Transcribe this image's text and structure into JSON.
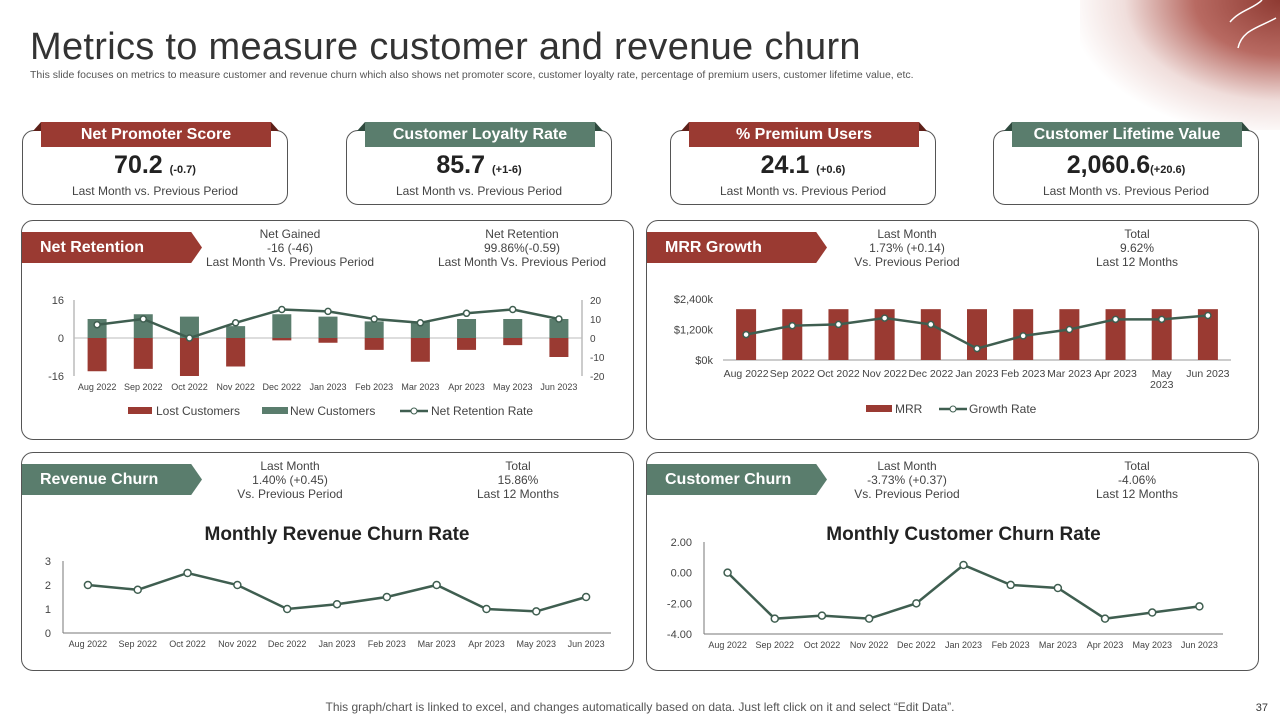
{
  "title": "Metrics to measure customer and revenue churn",
  "subtitle": "This slide focuses on metrics to measure customer and revenue churn which also shows net promoter score, customer loyalty rate, percentage of premium users, customer lifetime value, etc.",
  "kpis": [
    {
      "label": "Net Promoter Score",
      "value": "70.2",
      "change": "(-0.7)",
      "note": "Last Month vs. Previous Period"
    },
    {
      "label": "Customer Loyalty Rate",
      "value": "85.7",
      "change": "(+1-6)",
      "note": "Last Month vs. Previous Period"
    },
    {
      "label": "% Premium Users",
      "value": "24.1",
      "change": "(+0.6)",
      "note": "Last Month vs. Previous Period"
    },
    {
      "label": "Customer Lifetime Value",
      "value": "2,060.6",
      "change": "(+20.6)",
      "note": "Last Month vs. Previous Period"
    }
  ],
  "panels": {
    "net_retention": {
      "title": "Net Retention",
      "stat1": {
        "l1": "Net Gained",
        "l2": "-16 (-46)",
        "l3": "Last Month Vs. Previous Period"
      },
      "stat2": {
        "l1": "Net Retention",
        "l2": "99.86%(-0.59)",
        "l3": "Last Month Vs. Previous Period"
      }
    },
    "mrr_growth": {
      "title": "MRR Growth",
      "stat1": {
        "l1": "Last Month",
        "l2": "1.73% (+0.14)",
        "l3": "Vs. Previous Period"
      },
      "stat2": {
        "l1": "Total",
        "l2": "9.62%",
        "l3": "Last 12 Months"
      }
    },
    "revenue_churn": {
      "title": "Revenue Churn",
      "stat1": {
        "l1": "Last Month",
        "l2": "1.40% (+0.45)",
        "l3": "Vs. Previous Period"
      },
      "stat2": {
        "l1": "Total",
        "l2": "15.86%",
        "l3": "Last 12 Months"
      }
    },
    "customer_churn": {
      "title": "Customer Churn",
      "stat1": {
        "l1": "Last Month",
        "l2": "-3.73% (+0.37)",
        "l3": "Vs. Previous Period"
      },
      "stat2": {
        "l1": "Total",
        "l2": "-4.06%",
        "l3": "Last 12 Months"
      }
    }
  },
  "footer": "This graph/chart is linked to excel, and changes automatically based on data. Just left click on it and select “Edit Data”.",
  "page_number": "37",
  "colors": {
    "red": "#9a3a32",
    "green": "#5a7d6d",
    "line": "#3f5e50"
  },
  "chart_data": [
    {
      "id": "net_retention",
      "type": "bar",
      "categories": [
        "Aug 2022",
        "Sep 2022",
        "Oct 2022",
        "Nov 2022",
        "Dec 2022",
        "Jan 2023",
        "Feb 2023",
        "Mar 2023",
        "Apr 2023",
        "May 2023",
        "Jun 2023"
      ],
      "series": [
        {
          "name": "Lost Customers",
          "axis": "left",
          "values": [
            -14,
            -13,
            -16,
            -12,
            -1,
            -2,
            -5,
            -10,
            -5,
            -3,
            -8
          ]
        },
        {
          "name": "New Customers",
          "axis": "left",
          "values": [
            8,
            10,
            9,
            5,
            10,
            9,
            7,
            7,
            8,
            8,
            8
          ]
        },
        {
          "name": "Net Retention Rate",
          "axis": "right",
          "type": "line",
          "values": [
            7,
            10,
            0,
            8,
            15,
            14,
            10,
            8,
            13,
            15,
            10
          ]
        }
      ],
      "y_left": {
        "ticks": [
          "16",
          "0",
          "-16"
        ],
        "min": -16,
        "max": 16
      },
      "y_right": {
        "ticks": [
          "20",
          "10",
          "0",
          "-10",
          "-20"
        ],
        "min": -20,
        "max": 20
      },
      "legend": [
        "Lost Customers",
        "New Customers",
        "Net Retention Rate"
      ]
    },
    {
      "id": "mrr_growth",
      "type": "bar",
      "categories": [
        "Aug 2022",
        "Sep 2022",
        "Oct 2022",
        "Nov 2022",
        "Dec 2022",
        "Jan 2023",
        "Feb 2023",
        "Mar 2023",
        "Apr 2023",
        "May 2023",
        "Jun 2023"
      ],
      "category_lines": [
        [
          "Aug 2022"
        ],
        [
          "Sep 2022"
        ],
        [
          "Oct 2022"
        ],
        [
          "Nov 2022"
        ],
        [
          "Dec 2022"
        ],
        [
          "Jan 2023"
        ],
        [
          "Feb 2023"
        ],
        [
          "Mar 2023"
        ],
        [
          "Apr 2023"
        ],
        [
          "May",
          "2023"
        ],
        [
          "Jun 2023"
        ]
      ],
      "series": [
        {
          "name": "MRR",
          "values": [
            2000,
            2000,
            2000,
            2000,
            2000,
            2000,
            2000,
            2000,
            2000,
            2000,
            2000
          ]
        },
        {
          "name": "Growth Rate",
          "type": "line",
          "values": [
            1000,
            1350,
            1400,
            1650,
            1400,
            450,
            950,
            1200,
            1600,
            1600,
            1750
          ]
        }
      ],
      "y": {
        "ticks": [
          "$2,400k",
          "$1,200k",
          "$0k"
        ],
        "min": 0,
        "max": 2400
      },
      "legend": [
        "MRR",
        "Growth Rate"
      ]
    },
    {
      "id": "revenue_churn",
      "type": "line",
      "title": "Monthly Revenue Churn Rate",
      "categories": [
        "Aug 2022",
        "Sep 2022",
        "Oct 2022",
        "Nov 2022",
        "Dec 2022",
        "Jan 2023",
        "Feb 2023",
        "Mar 2023",
        "Apr 2023",
        "May 2023",
        "Jun 2023"
      ],
      "values": [
        2.0,
        1.8,
        2.5,
        2.0,
        1.0,
        1.2,
        1.5,
        2.0,
        1.0,
        0.9,
        1.5
      ],
      "y": {
        "ticks": [
          "3",
          "2",
          "1",
          "0"
        ],
        "min": 0,
        "max": 3
      }
    },
    {
      "id": "customer_churn",
      "type": "line",
      "title": "Monthly Customer Churn Rate",
      "categories": [
        "Aug 2022",
        "Sep 2022",
        "Oct 2022",
        "Nov 2022",
        "Dec 2022",
        "Jan 2023",
        "Feb 2023",
        "Mar 2023",
        "Apr 2023",
        "May 2023",
        "Jun 2023"
      ],
      "values": [
        0.0,
        -3.0,
        -2.8,
        -3.0,
        -2.0,
        0.5,
        -0.8,
        -1.0,
        -3.0,
        -2.6,
        -2.2
      ],
      "y": {
        "ticks": [
          "2.00",
          "0.00",
          "-2.00",
          "-4.00"
        ],
        "min": -4,
        "max": 2
      }
    }
  ]
}
